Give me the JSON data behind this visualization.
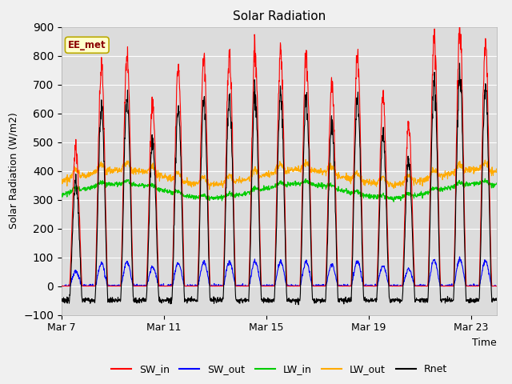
{
  "title": "Solar Radiation",
  "ylabel": "Solar Radiation (W/m2)",
  "xlabel": "Time",
  "ylim": [
    -100,
    900
  ],
  "yticks": [
    -100,
    0,
    100,
    200,
    300,
    400,
    500,
    600,
    700,
    800,
    900
  ],
  "xtick_labels": [
    "Mar 7",
    "Mar 11",
    "Mar 15",
    "Mar 19",
    "Mar 23"
  ],
  "site_label": "EE_met",
  "series_colors": {
    "SW_in": "#ff0000",
    "SW_out": "#0000ff",
    "LW_in": "#00cc00",
    "LW_out": "#ffaa00",
    "Rnet": "#000000"
  },
  "bg_color": "#dcdcdc",
  "fig_bg": "#f0f0f0",
  "n_days": 17,
  "dt_hours": 0.25,
  "xtick_pos": [
    0,
    96,
    192,
    288,
    384
  ],
  "xlim": [
    0,
    408
  ]
}
